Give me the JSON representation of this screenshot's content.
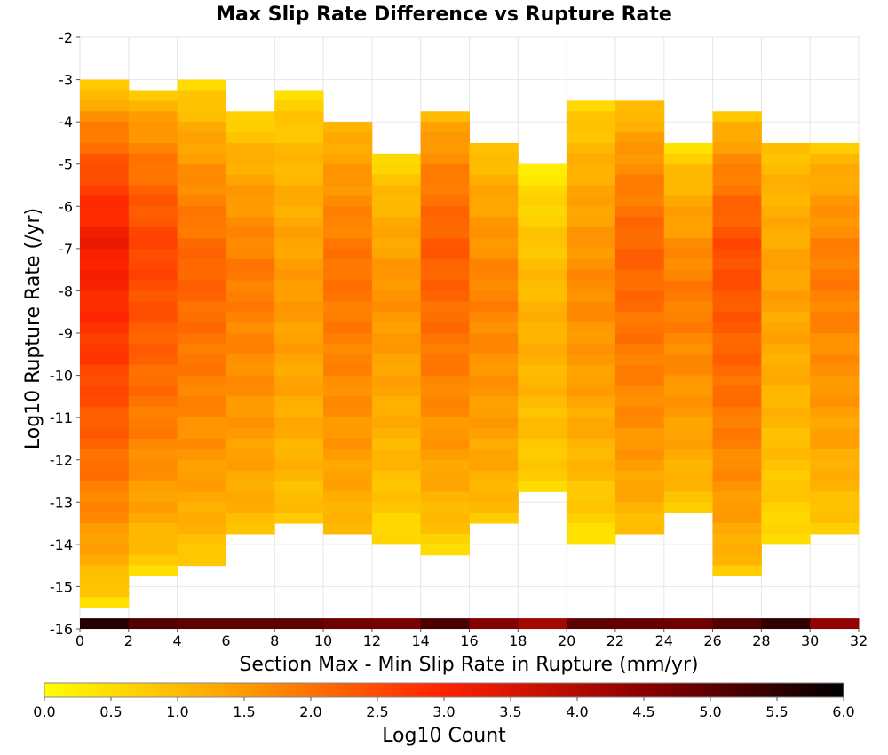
{
  "chart_data": {
    "type": "heatmap",
    "title": "Max Slip Rate Difference vs Rupture Rate",
    "xlabel": "Section Max - Min Slip Rate in Rupture (mm/yr)",
    "ylabel": "Log10 Rupture Rate (/yr)",
    "xlim": [
      0,
      32
    ],
    "ylim": [
      -16,
      -2
    ],
    "x_ticks": [
      "0",
      "2",
      "4",
      "6",
      "8",
      "10",
      "12",
      "14",
      "16",
      "18",
      "20",
      "22",
      "24",
      "26",
      "28",
      "30",
      "32"
    ],
    "y_ticks": [
      "-2",
      "-3",
      "-4",
      "-5",
      "-6",
      "-7",
      "-8",
      "-9",
      "-10",
      "-11",
      "-12",
      "-13",
      "-14",
      "-15",
      "-16"
    ],
    "x_bin_width": 2,
    "y_bin_height": 0.25,
    "grid": true,
    "colorbar": {
      "label": "Log10 Count",
      "min": 0.0,
      "max": 6.0,
      "ticks": [
        "0.0",
        "0.5",
        "1.0",
        "1.5",
        "2.0",
        "2.5",
        "3.0",
        "3.5",
        "4.0",
        "4.5",
        "5.0",
        "5.5",
        "6.0"
      ],
      "colors": [
        "#ffff00",
        "#ff8c00",
        "#ff2200",
        "#8b0000",
        "#000000"
      ]
    },
    "summary_strip": {
      "y": -16,
      "values": [
        5.6,
        5.1,
        5.0,
        5.0,
        5.0,
        4.8,
        4.7,
        5.2,
        4.6,
        4.2,
        5.0,
        4.9,
        4.8,
        5.1,
        5.5,
        4.4
      ]
    },
    "columns": [
      {
        "x_start": 0,
        "y_top": -3.0,
        "y_bottom": -15.5,
        "peak_y": -6.8,
        "peak": 3.2,
        "top_val": 0.1,
        "bottom_val": 0.1
      },
      {
        "x_start": 2,
        "y_top": -3.25,
        "y_bottom": -14.75,
        "peak_y": -7.0,
        "peak": 2.6,
        "top_val": 0.5,
        "bottom_val": 0.3
      },
      {
        "x_start": 4,
        "y_top": -3.0,
        "y_bottom": -14.5,
        "peak_y": -7.5,
        "peak": 2.2,
        "top_val": 0.2,
        "bottom_val": 0.5
      },
      {
        "x_start": 6,
        "y_top": -3.75,
        "y_bottom": -13.75,
        "peak_y": -7.5,
        "peak": 1.9,
        "top_val": 0.3,
        "bottom_val": 0.8
      },
      {
        "x_start": 8,
        "y_top": -3.25,
        "y_bottom": -13.5,
        "peak_y": -8.0,
        "peak": 1.5,
        "top_val": 0.4,
        "bottom_val": 0.7
      },
      {
        "x_start": 10,
        "y_top": -4.0,
        "y_bottom": -13.75,
        "peak_y": -7.5,
        "peak": 2.0,
        "top_val": 0.8,
        "bottom_val": 0.8
      },
      {
        "x_start": 12,
        "y_top": -4.75,
        "y_bottom": -14.0,
        "peak_y": -8.0,
        "peak": 1.6,
        "top_val": 0.3,
        "bottom_val": 0.3
      },
      {
        "x_start": 14,
        "y_top": -3.75,
        "y_bottom": -14.25,
        "peak_y": -7.0,
        "peak": 2.3,
        "top_val": 0.8,
        "bottom_val": 0.3
      },
      {
        "x_start": 16,
        "y_top": -4.5,
        "y_bottom": -13.5,
        "peak_y": -8.0,
        "peak": 1.8,
        "top_val": 0.6,
        "bottom_val": 0.7
      },
      {
        "x_start": 18,
        "y_top": -5.0,
        "y_bottom": -12.75,
        "peak_y": -9.0,
        "peak": 1.2,
        "top_val": 0.1,
        "bottom_val": 0.5
      },
      {
        "x_start": 20,
        "y_top": -3.5,
        "y_bottom": -14.0,
        "peak_y": -8.0,
        "peak": 1.7,
        "top_val": 0.4,
        "bottom_val": 0.2
      },
      {
        "x_start": 22,
        "y_top": -3.5,
        "y_bottom": -13.75,
        "peak_y": -7.0,
        "peak": 2.2,
        "top_val": 0.6,
        "bottom_val": 0.7
      },
      {
        "x_start": 24,
        "y_top": -4.5,
        "y_bottom": -13.25,
        "peak_y": -8.0,
        "peak": 1.9,
        "top_val": 0.2,
        "bottom_val": 0.6
      },
      {
        "x_start": 26,
        "y_top": -3.75,
        "y_bottom": -14.75,
        "peak_y": -7.0,
        "peak": 2.5,
        "top_val": 0.4,
        "bottom_val": 0.6
      },
      {
        "x_start": 28,
        "y_top": -4.5,
        "y_bottom": -14.0,
        "peak_y": -8.0,
        "peak": 1.4,
        "top_val": 0.8,
        "bottom_val": 0.3
      },
      {
        "x_start": 30,
        "y_top": -4.5,
        "y_bottom": -13.75,
        "peak_y": -7.5,
        "peak": 1.9,
        "top_val": 0.6,
        "bottom_val": 0.5
      }
    ]
  }
}
